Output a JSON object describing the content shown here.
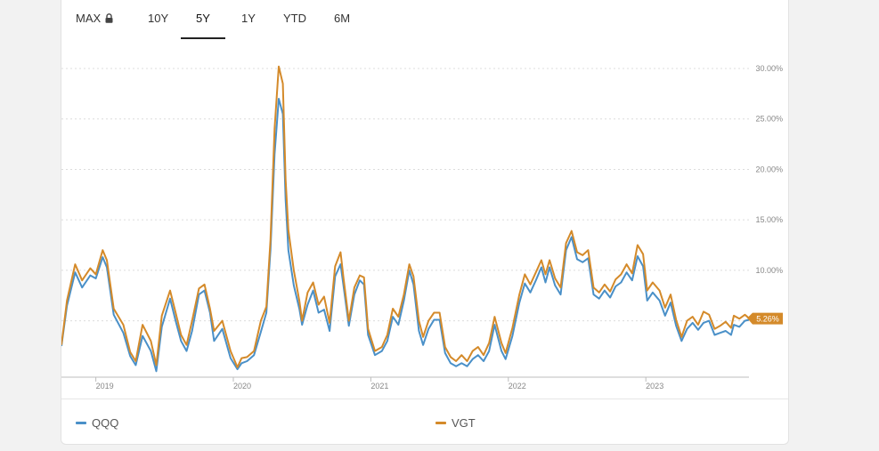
{
  "tabs": [
    {
      "label": "MAX",
      "locked": true,
      "active": false
    },
    {
      "label": "10Y",
      "locked": false,
      "active": false
    },
    {
      "label": "5Y",
      "locked": false,
      "active": true
    },
    {
      "label": "1Y",
      "locked": false,
      "active": false
    },
    {
      "label": "YTD",
      "locked": false,
      "active": false
    },
    {
      "label": "6M",
      "locked": false,
      "active": false
    }
  ],
  "legend": [
    {
      "name": "QQQ",
      "color": "#4a90c8"
    },
    {
      "name": "VGT",
      "color": "#d48a2a"
    }
  ],
  "current_value_label": "5.26%",
  "chart_data": {
    "type": "line",
    "x_ticks": [
      "2019",
      "2020",
      "2021",
      "2022",
      "2023"
    ],
    "y_ticks": [
      "10.00%",
      "15.00%",
      "20.00%",
      "25.00%",
      "30.00%"
    ],
    "ylim": [
      -0.5,
      31.5
    ],
    "xlim": [
      2018.75,
      2023.75
    ],
    "grid": true,
    "series": [
      {
        "name": "QQQ",
        "color": "#4a90c8",
        "points": [
          [
            2018.75,
            2.5
          ],
          [
            2018.79,
            6.5
          ],
          [
            2018.85,
            9.8
          ],
          [
            2018.9,
            8.3
          ],
          [
            2018.96,
            9.5
          ],
          [
            2019.0,
            9.2
          ],
          [
            2019.05,
            11.3
          ],
          [
            2019.08,
            10.3
          ],
          [
            2019.13,
            5.6
          ],
          [
            2019.2,
            3.8
          ],
          [
            2019.25,
            1.5
          ],
          [
            2019.29,
            0.6
          ],
          [
            2019.34,
            3.5
          ],
          [
            2019.4,
            2.0
          ],
          [
            2019.44,
            0.0
          ],
          [
            2019.48,
            4.4
          ],
          [
            2019.54,
            7.2
          ],
          [
            2019.58,
            5.0
          ],
          [
            2019.62,
            3.0
          ],
          [
            2019.66,
            2.0
          ],
          [
            2019.7,
            4.0
          ],
          [
            2019.75,
            7.6
          ],
          [
            2019.79,
            8.0
          ],
          [
            2019.83,
            5.8
          ],
          [
            2019.86,
            3.0
          ],
          [
            2019.92,
            4.2
          ],
          [
            2019.98,
            1.3
          ],
          [
            2020.03,
            0.2
          ],
          [
            2020.06,
            0.8
          ],
          [
            2020.1,
            1.0
          ],
          [
            2020.15,
            1.6
          ],
          [
            2020.2,
            3.9
          ],
          [
            2020.24,
            5.8
          ],
          [
            2020.27,
            12.0
          ],
          [
            2020.3,
            21.5
          ],
          [
            2020.33,
            27.0
          ],
          [
            2020.36,
            25.5
          ],
          [
            2020.38,
            17.0
          ],
          [
            2020.4,
            12.0
          ],
          [
            2020.44,
            8.5
          ],
          [
            2020.48,
            6.2
          ],
          [
            2020.5,
            4.6
          ],
          [
            2020.54,
            6.6
          ],
          [
            2020.58,
            8.0
          ],
          [
            2020.62,
            5.8
          ],
          [
            2020.66,
            6.1
          ],
          [
            2020.7,
            4.0
          ],
          [
            2020.74,
            9.4
          ],
          [
            2020.78,
            10.6
          ],
          [
            2020.8,
            8.6
          ],
          [
            2020.84,
            4.5
          ],
          [
            2020.88,
            7.6
          ],
          [
            2020.92,
            9.0
          ],
          [
            2020.95,
            8.6
          ],
          [
            2020.98,
            3.6
          ],
          [
            2021.03,
            1.6
          ],
          [
            2021.08,
            2.0
          ],
          [
            2021.12,
            3.0
          ],
          [
            2021.16,
            5.4
          ],
          [
            2021.2,
            4.6
          ],
          [
            2021.24,
            7.0
          ],
          [
            2021.28,
            10.0
          ],
          [
            2021.31,
            8.6
          ],
          [
            2021.35,
            4.0
          ],
          [
            2021.38,
            2.6
          ],
          [
            2021.42,
            4.2
          ],
          [
            2021.46,
            5.1
          ],
          [
            2021.5,
            5.1
          ],
          [
            2021.54,
            1.8
          ],
          [
            2021.58,
            0.8
          ],
          [
            2021.62,
            0.5
          ],
          [
            2021.66,
            0.8
          ],
          [
            2021.7,
            0.5
          ],
          [
            2021.74,
            1.2
          ],
          [
            2021.78,
            1.6
          ],
          [
            2021.82,
            1.0
          ],
          [
            2021.86,
            2.0
          ],
          [
            2021.9,
            4.6
          ],
          [
            2021.95,
            2.0
          ],
          [
            2021.98,
            1.2
          ],
          [
            2022.03,
            3.5
          ],
          [
            2022.08,
            6.8
          ],
          [
            2022.12,
            8.7
          ],
          [
            2022.16,
            7.8
          ],
          [
            2022.2,
            9.0
          ],
          [
            2022.24,
            10.3
          ],
          [
            2022.27,
            8.8
          ],
          [
            2022.3,
            10.3
          ],
          [
            2022.34,
            8.5
          ],
          [
            2022.38,
            7.6
          ],
          [
            2022.42,
            12.0
          ],
          [
            2022.46,
            13.3
          ],
          [
            2022.5,
            11.1
          ],
          [
            2022.54,
            10.8
          ],
          [
            2022.58,
            11.2
          ],
          [
            2022.62,
            7.6
          ],
          [
            2022.66,
            7.2
          ],
          [
            2022.7,
            8.0
          ],
          [
            2022.74,
            7.3
          ],
          [
            2022.78,
            8.4
          ],
          [
            2022.82,
            8.8
          ],
          [
            2022.86,
            9.8
          ],
          [
            2022.9,
            9.0
          ],
          [
            2022.94,
            11.4
          ],
          [
            2022.98,
            10.4
          ],
          [
            2023.01,
            7.0
          ],
          [
            2023.05,
            7.8
          ],
          [
            2023.1,
            7.0
          ],
          [
            2023.14,
            5.5
          ],
          [
            2023.18,
            6.8
          ],
          [
            2023.22,
            4.5
          ],
          [
            2023.26,
            3.0
          ],
          [
            2023.3,
            4.2
          ],
          [
            2023.34,
            4.8
          ],
          [
            2023.38,
            4.1
          ],
          [
            2023.42,
            4.8
          ],
          [
            2023.46,
            5.0
          ],
          [
            2023.5,
            3.6
          ],
          [
            2023.54,
            3.8
          ],
          [
            2023.58,
            4.0
          ],
          [
            2023.62,
            3.6
          ],
          [
            2023.64,
            4.6
          ],
          [
            2023.68,
            4.4
          ],
          [
            2023.72,
            5.0
          ],
          [
            2023.75,
            5.1
          ]
        ]
      },
      {
        "name": "VGT",
        "color": "#d48a2a",
        "points": [
          [
            2018.75,
            2.6
          ],
          [
            2018.79,
            7.0
          ],
          [
            2018.85,
            10.6
          ],
          [
            2018.9,
            9.0
          ],
          [
            2018.96,
            10.2
          ],
          [
            2019.0,
            9.6
          ],
          [
            2019.05,
            12.0
          ],
          [
            2019.08,
            11.0
          ],
          [
            2019.13,
            6.2
          ],
          [
            2019.2,
            4.6
          ],
          [
            2019.25,
            1.9
          ],
          [
            2019.29,
            1.0
          ],
          [
            2019.34,
            4.6
          ],
          [
            2019.4,
            3.0
          ],
          [
            2019.44,
            0.6
          ],
          [
            2019.48,
            5.5
          ],
          [
            2019.54,
            8.0
          ],
          [
            2019.58,
            5.8
          ],
          [
            2019.62,
            3.6
          ],
          [
            2019.66,
            2.6
          ],
          [
            2019.7,
            5.0
          ],
          [
            2019.75,
            8.2
          ],
          [
            2019.79,
            8.6
          ],
          [
            2019.83,
            6.2
          ],
          [
            2019.86,
            4.0
          ],
          [
            2019.92,
            5.0
          ],
          [
            2019.98,
            2.0
          ],
          [
            2020.03,
            0.4
          ],
          [
            2020.06,
            1.3
          ],
          [
            2020.1,
            1.4
          ],
          [
            2020.15,
            2.0
          ],
          [
            2020.2,
            5.0
          ],
          [
            2020.24,
            6.4
          ],
          [
            2020.27,
            13.0
          ],
          [
            2020.3,
            24.0
          ],
          [
            2020.33,
            30.2
          ],
          [
            2020.36,
            28.5
          ],
          [
            2020.38,
            19.0
          ],
          [
            2020.4,
            14.0
          ],
          [
            2020.44,
            10.0
          ],
          [
            2020.48,
            7.0
          ],
          [
            2020.5,
            5.0
          ],
          [
            2020.54,
            7.8
          ],
          [
            2020.58,
            8.8
          ],
          [
            2020.62,
            6.6
          ],
          [
            2020.66,
            7.4
          ],
          [
            2020.7,
            4.8
          ],
          [
            2020.74,
            10.4
          ],
          [
            2020.78,
            11.8
          ],
          [
            2020.8,
            9.4
          ],
          [
            2020.84,
            5.0
          ],
          [
            2020.88,
            8.3
          ],
          [
            2020.92,
            9.5
          ],
          [
            2020.95,
            9.3
          ],
          [
            2020.98,
            4.2
          ],
          [
            2021.03,
            2.0
          ],
          [
            2021.08,
            2.4
          ],
          [
            2021.12,
            3.6
          ],
          [
            2021.16,
            6.2
          ],
          [
            2021.2,
            5.4
          ],
          [
            2021.24,
            7.6
          ],
          [
            2021.28,
            10.6
          ],
          [
            2021.31,
            9.4
          ],
          [
            2021.35,
            5.0
          ],
          [
            2021.38,
            3.4
          ],
          [
            2021.42,
            5.0
          ],
          [
            2021.46,
            5.8
          ],
          [
            2021.5,
            5.8
          ],
          [
            2021.54,
            2.4
          ],
          [
            2021.58,
            1.4
          ],
          [
            2021.62,
            1.0
          ],
          [
            2021.66,
            1.6
          ],
          [
            2021.7,
            1.0
          ],
          [
            2021.74,
            2.0
          ],
          [
            2021.78,
            2.4
          ],
          [
            2021.82,
            1.6
          ],
          [
            2021.86,
            2.8
          ],
          [
            2021.9,
            5.4
          ],
          [
            2021.95,
            2.8
          ],
          [
            2021.98,
            1.8
          ],
          [
            2022.03,
            4.3
          ],
          [
            2022.08,
            7.6
          ],
          [
            2022.12,
            9.6
          ],
          [
            2022.16,
            8.6
          ],
          [
            2022.2,
            9.8
          ],
          [
            2022.24,
            11.0
          ],
          [
            2022.27,
            9.6
          ],
          [
            2022.3,
            11.0
          ],
          [
            2022.34,
            9.2
          ],
          [
            2022.38,
            8.3
          ],
          [
            2022.42,
            12.7
          ],
          [
            2022.46,
            13.9
          ],
          [
            2022.5,
            11.8
          ],
          [
            2022.54,
            11.5
          ],
          [
            2022.58,
            12.0
          ],
          [
            2022.62,
            8.3
          ],
          [
            2022.66,
            7.8
          ],
          [
            2022.7,
            8.6
          ],
          [
            2022.74,
            7.9
          ],
          [
            2022.78,
            9.1
          ],
          [
            2022.82,
            9.6
          ],
          [
            2022.86,
            10.6
          ],
          [
            2022.9,
            9.7
          ],
          [
            2022.94,
            12.5
          ],
          [
            2022.98,
            11.6
          ],
          [
            2023.01,
            8.0
          ],
          [
            2023.05,
            8.8
          ],
          [
            2023.1,
            8.0
          ],
          [
            2023.14,
            6.3
          ],
          [
            2023.18,
            7.6
          ],
          [
            2023.22,
            5.1
          ],
          [
            2023.26,
            3.4
          ],
          [
            2023.3,
            5.0
          ],
          [
            2023.34,
            5.4
          ],
          [
            2023.38,
            4.6
          ],
          [
            2023.42,
            5.9
          ],
          [
            2023.46,
            5.6
          ],
          [
            2023.5,
            4.2
          ],
          [
            2023.54,
            4.5
          ],
          [
            2023.58,
            4.9
          ],
          [
            2023.62,
            4.3
          ],
          [
            2023.64,
            5.5
          ],
          [
            2023.68,
            5.2
          ],
          [
            2023.72,
            5.6
          ],
          [
            2023.75,
            5.26
          ]
        ]
      }
    ]
  }
}
